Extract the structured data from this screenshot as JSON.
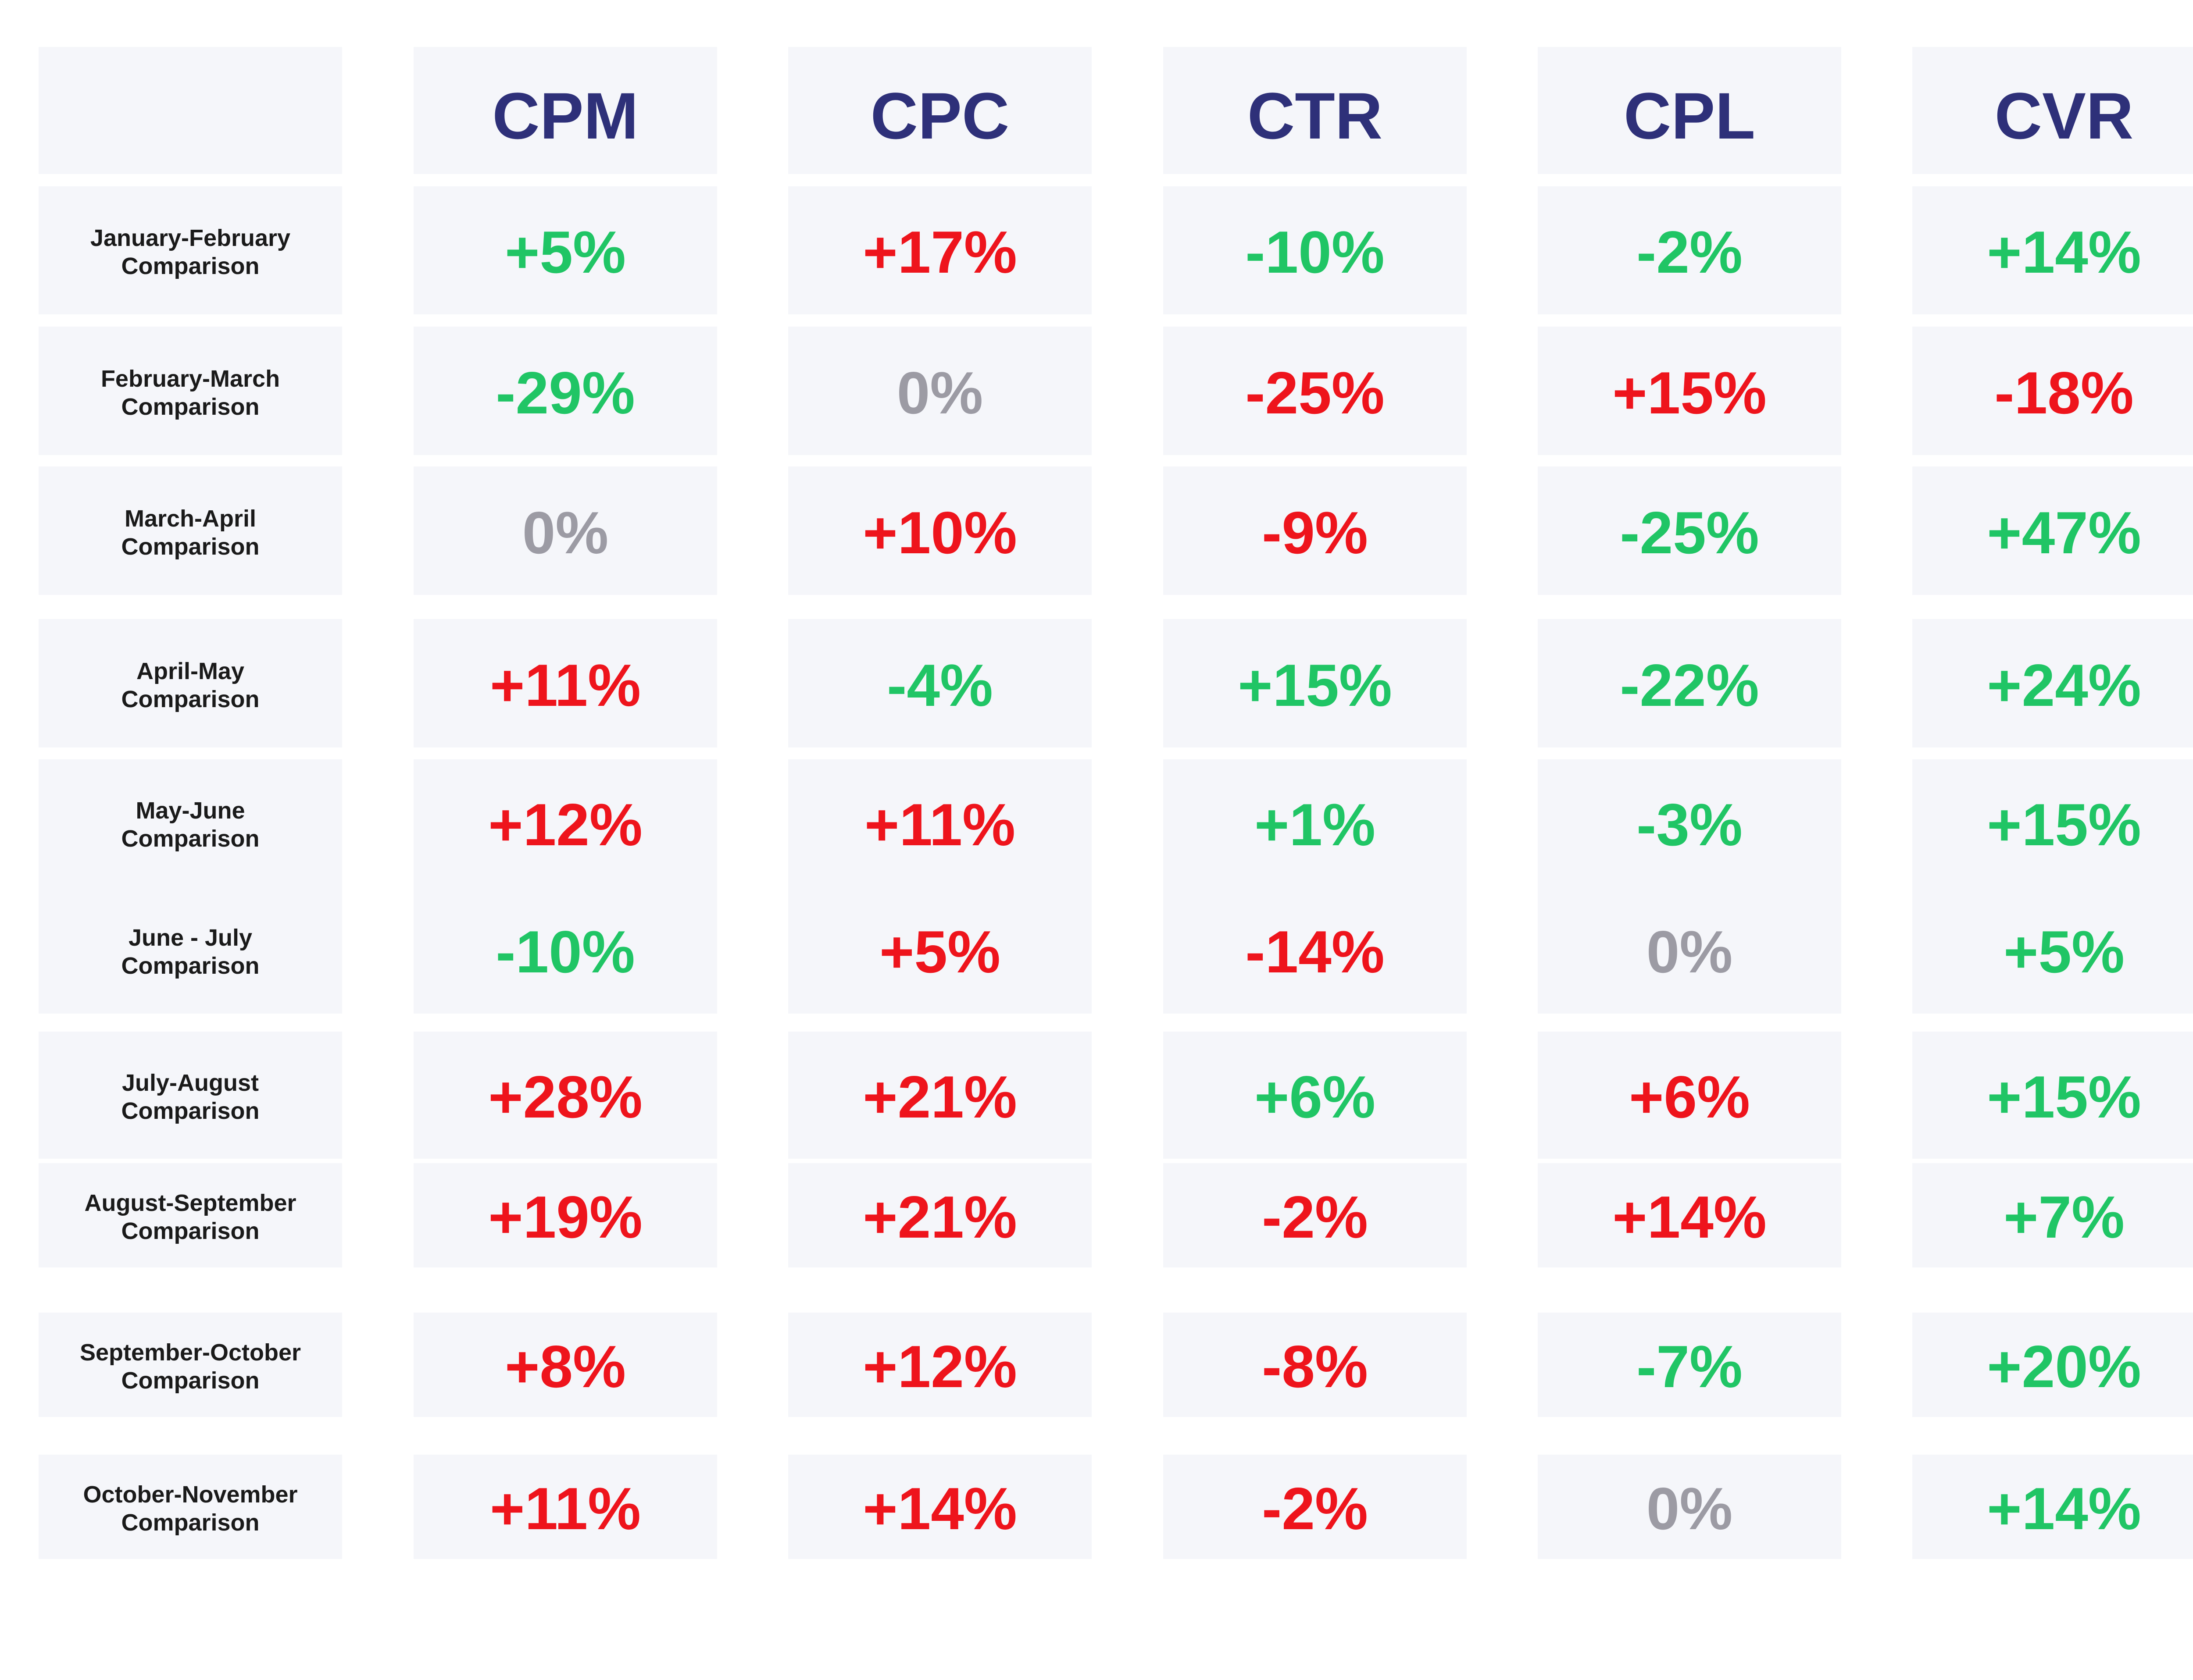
{
  "colors": {
    "background": "#ffffff",
    "cell_background": "#f5f6fa",
    "header_text": "#2e3079",
    "label_text": "#1a1a1a",
    "increase": "#ee141c",
    "decrease": "#20c565",
    "neutral": "#9c9ba4"
  },
  "chart_data": {
    "type": "table",
    "columns": [
      "CPM",
      "CPC",
      "CTR",
      "CPL",
      "CVR"
    ],
    "rows": [
      {
        "label": "January-February\nComparison",
        "values": [
          "+5%",
          "+17%",
          "-10%",
          "-2%",
          "+14%"
        ],
        "tones": [
          "decrease",
          "increase",
          "decrease",
          "decrease",
          "decrease"
        ]
      },
      {
        "label": "February-March\nComparison",
        "values": [
          "-29%",
          "0%",
          "-25%",
          "+15%",
          "-18%"
        ],
        "tones": [
          "decrease",
          "neutral",
          "increase",
          "increase",
          "increase"
        ]
      },
      {
        "label": "March-April\nComparison",
        "values": [
          "0%",
          "+10%",
          "-9%",
          "-25%",
          "+47%"
        ],
        "tones": [
          "neutral",
          "increase",
          "increase",
          "decrease",
          "decrease"
        ]
      },
      {
        "label": "April-May\nComparison",
        "values": [
          "+11%",
          "-4%",
          "+15%",
          "-22%",
          "+24%"
        ],
        "tones": [
          "increase",
          "decrease",
          "decrease",
          "decrease",
          "decrease"
        ]
      },
      {
        "label": "May-June\nComparison",
        "values": [
          "+12%",
          "+11%",
          "+1%",
          "-3%",
          "+15%"
        ],
        "tones": [
          "increase",
          "increase",
          "decrease",
          "decrease",
          "decrease"
        ]
      },
      {
        "label": "June - July\nComparison",
        "values": [
          "-10%",
          "+5%",
          "-14%",
          "0%",
          "+5%"
        ],
        "tones": [
          "decrease",
          "increase",
          "increase",
          "neutral",
          "decrease"
        ]
      },
      {
        "label": "July-August\nComparison",
        "values": [
          "+28%",
          "+21%",
          "+6%",
          "+6%",
          "+15%"
        ],
        "tones": [
          "increase",
          "increase",
          "decrease",
          "increase",
          "decrease"
        ]
      },
      {
        "label": "August-September\nComparison",
        "values": [
          "+19%",
          "+21%",
          "-2%",
          "+14%",
          "+7%"
        ],
        "tones": [
          "increase",
          "increase",
          "increase",
          "increase",
          "decrease"
        ]
      },
      {
        "label": "September-October\nComparison",
        "values": [
          "+8%",
          "+12%",
          "-8%",
          "-7%",
          "+20%"
        ],
        "tones": [
          "increase",
          "increase",
          "increase",
          "decrease",
          "decrease"
        ]
      },
      {
        "label": "October-November\nComparison",
        "values": [
          "+11%",
          "+14%",
          "-2%",
          "0%",
          "+14%"
        ],
        "tones": [
          "increase",
          "increase",
          "increase",
          "neutral",
          "decrease"
        ]
      }
    ]
  }
}
